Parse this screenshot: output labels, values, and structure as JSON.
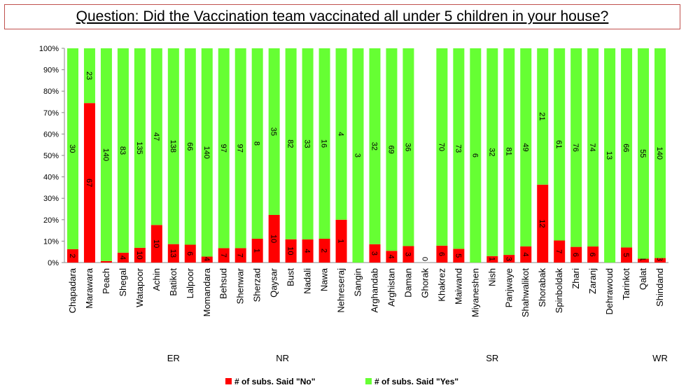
{
  "chart_data": {
    "type": "stacked_percent_bar",
    "title": "Question: Did the Vaccination team vaccinated all under 5 children in your house?",
    "categories": [
      "Chapadara",
      "Marawara",
      "Peach",
      "Shegal",
      "Watapoor",
      "Achin",
      "Batikot",
      "Lalpoor",
      "Momandara",
      "Behsud",
      "Shenwar",
      "Sherzad",
      "Qaysar",
      "Bust",
      "Nadali",
      "Nawa",
      "Nehreseraj",
      "Sangin",
      "Arghandab",
      "Arghistan",
      "Daman",
      "Ghorak",
      "Khakrez",
      "Maiwand",
      "Miyaneshen",
      "Nish",
      "Panjwaye",
      "Shahwalikot",
      "Shorabak",
      "Spinboldak",
      "Zhari",
      "Zaranj",
      "Dehrawoud",
      "Tarinkot",
      "Qalat",
      "Shindand"
    ],
    "series": [
      {
        "name": "# of subs.  Said \"No\"",
        "color": "#ff0000",
        "values": [
          2,
          67,
          1,
          4,
          10,
          10,
          13,
          6,
          4,
          7,
          7,
          1,
          10,
          10,
          4,
          2,
          1,
          0,
          3,
          4,
          3,
          0,
          6,
          5,
          0,
          1,
          3,
          4,
          12,
          7,
          6,
          6,
          0,
          5,
          1,
          3
        ]
      },
      {
        "name": "# of subs.  Said \"Yes\"",
        "color": "#66ff33",
        "values": [
          30,
          23,
          140,
          83,
          135,
          47,
          138,
          66,
          140,
          97,
          97,
          8,
          35,
          82,
          33,
          16,
          4,
          3,
          32,
          69,
          36,
          null,
          70,
          73,
          6,
          32,
          81,
          49,
          21,
          61,
          76,
          74,
          13,
          66,
          55,
          140
        ]
      }
    ],
    "regions": [
      "ER",
      "NR",
      "SR",
      "WR"
    ],
    "ylim": [
      0,
      100
    ],
    "yticks": [
      {
        "value": 0,
        "label": "0%"
      },
      {
        "value": 10,
        "label": "10%"
      },
      {
        "value": 20,
        "label": "20%"
      },
      {
        "value": 30,
        "label": "30%"
      },
      {
        "value": 40,
        "label": "40%"
      },
      {
        "value": 50,
        "label": "50%"
      },
      {
        "value": 60,
        "label": "60%"
      },
      {
        "value": 70,
        "label": "70%"
      },
      {
        "value": 80,
        "label": "80%"
      },
      {
        "value": 90,
        "label": "90%"
      },
      {
        "value": 100,
        "label": "100%"
      }
    ]
  }
}
